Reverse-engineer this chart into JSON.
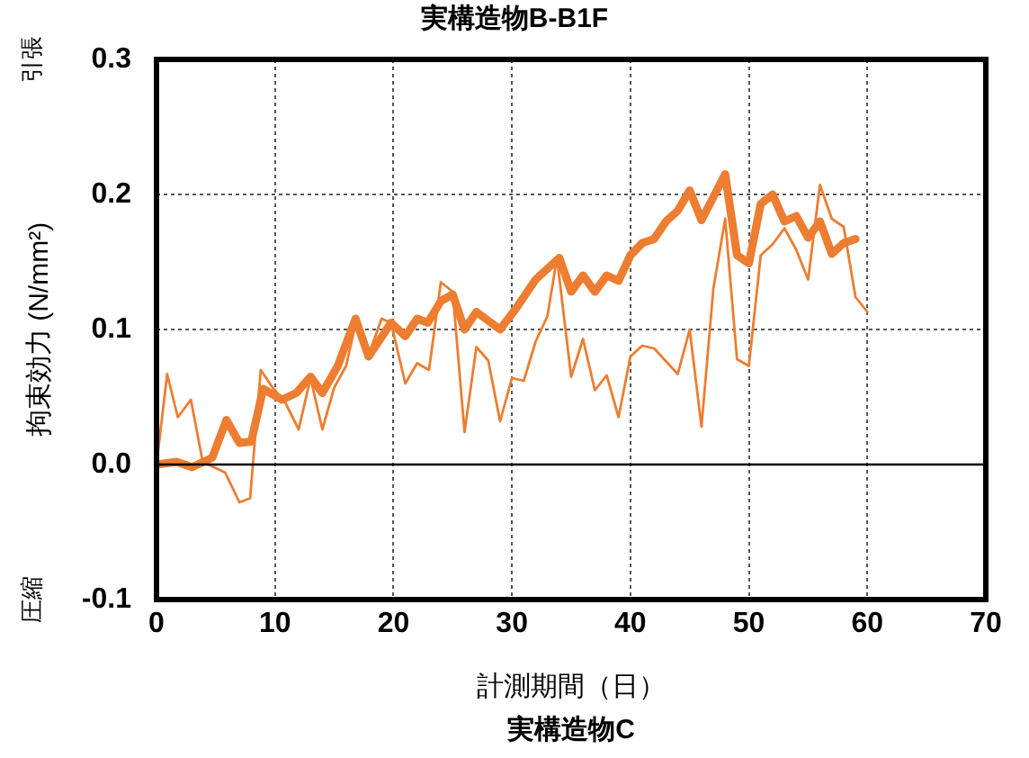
{
  "chart_data": {
    "type": "line",
    "title": "実構造物B-B1F",
    "xlabel": "計測期間（日）",
    "ylabel": "拘束効力 (N/mm²)",
    "annotations": [
      "引張",
      "圧縮",
      "実構造物C"
    ],
    "xlim": [
      0,
      70
    ],
    "xticks": [
      0,
      10,
      20,
      30,
      40,
      50,
      60,
      70
    ],
    "ylim": [
      -0.1,
      0.3
    ],
    "yticks": [
      -0.1,
      {
        "value": 0,
        "label": "0.0"
      },
      0.1,
      0.2,
      0.3
    ],
    "grid": true,
    "legend": false,
    "marker": "none",
    "line_style": "solid",
    "ref_lines": [
      {
        "axis": "y",
        "value": 0,
        "color": "#000000"
      }
    ],
    "series": [
      {
        "color": "#ed7d31",
        "x": [
          0,
          0.9,
          1.8,
          2.9,
          3.9,
          5.8,
          7,
          7.9,
          8.8,
          9.8,
          10.8,
          12,
          13,
          14,
          15,
          16,
          16.8,
          17.9,
          19,
          19.8,
          21,
          22,
          23,
          24,
          25,
          26,
          27,
          28,
          29,
          30,
          31,
          32,
          33,
          33.8,
          35,
          36,
          37,
          38,
          39,
          40,
          41,
          42,
          44,
          45,
          46,
          47,
          48,
          49,
          50,
          51,
          52,
          53,
          54,
          55,
          56,
          57,
          58,
          59,
          60
        ],
        "values": [
          0,
          0.067,
          0.035,
          0.048,
          0.002,
          -0.006,
          -0.028,
          -0.025,
          0.07,
          0.057,
          0.047,
          0.026,
          0.064,
          0.026,
          0.057,
          0.073,
          0.104,
          0.081,
          0.108,
          0.105,
          0.06,
          0.075,
          0.07,
          0.135,
          0.128,
          0.024,
          0.087,
          0.077,
          0.032,
          0.064,
          0.062,
          0.091,
          0.11,
          0.153,
          0.065,
          0.093,
          0.055,
          0.066,
          0.035,
          0.08,
          0.088,
          0.086,
          0.067,
          0.1,
          0.028,
          0.13,
          0.182,
          0.078,
          0.073,
          0.155,
          0.163,
          0.175,
          0.159,
          0.137,
          0.207,
          0.182,
          0.176,
          0.124,
          0.113
        ]
      },
      {
        "color": "#ed7d31",
        "x": [
          0,
          1.7,
          3,
          4.7,
          5.9,
          7,
          8,
          9,
          10.6,
          11.8,
          13,
          14,
          15.3,
          16.8,
          17.9,
          19.8,
          21,
          22,
          22.9,
          24,
          25,
          26,
          27,
          29,
          30.3,
          32,
          34,
          35,
          36,
          37,
          38,
          39,
          40,
          41,
          42,
          43,
          44,
          45,
          46,
          48,
          49,
          50,
          51,
          52,
          53,
          54,
          55,
          56,
          57,
          58,
          59
        ],
        "values": [
          0,
          0.002,
          -0.002,
          0.005,
          0.033,
          0.016,
          0.017,
          0.056,
          0.048,
          0.053,
          0.065,
          0.053,
          0.073,
          0.108,
          0.08,
          0.105,
          0.095,
          0.108,
          0.105,
          0.121,
          0.126,
          0.1,
          0.113,
          0.1,
          0.115,
          0.137,
          0.153,
          0.128,
          0.14,
          0.128,
          0.14,
          0.136,
          0.155,
          0.164,
          0.167,
          0.18,
          0.188,
          0.203,
          0.181,
          0.215,
          0.155,
          0.149,
          0.193,
          0.2,
          0.18,
          0.184,
          0.168,
          0.18,
          0.156,
          0.164,
          0.167
        ]
      }
    ]
  }
}
